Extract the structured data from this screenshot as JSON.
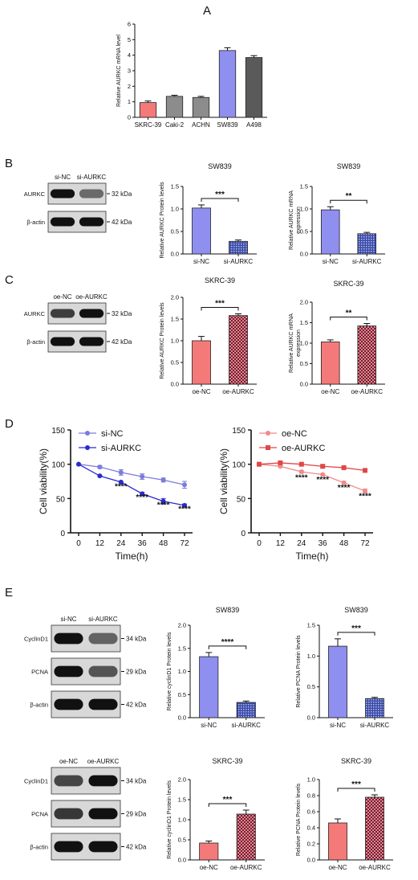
{
  "panel_A": {
    "letter": "A",
    "chart_data": {
      "type": "bar",
      "categories": [
        "SKRC-39",
        "Caki-2",
        "ACHN",
        "SW839",
        "A498"
      ],
      "values": [
        0.95,
        1.35,
        1.28,
        4.3,
        3.85
      ],
      "errors": [
        0.1,
        0.07,
        0.07,
        0.18,
        0.12
      ],
      "colors": [
        "#f47a7a",
        "#8c8c8c",
        "#8c8c8c",
        "#8f8fef",
        "#5a5a5a"
      ],
      "ylabel": "Relative AURKC mRNA level",
      "ylim": [
        0,
        6
      ],
      "yticks": [
        "0",
        "1",
        "2",
        "3",
        "4",
        "5",
        "6"
      ]
    }
  },
  "panel_B": {
    "letter": "B",
    "blot": {
      "lanes": [
        "si-NC",
        "si-AURKC"
      ],
      "rows": [
        {
          "label": "AURKC",
          "kda": "32 kDa",
          "bands": [
            1.0,
            0.4
          ]
        },
        {
          "label": "β-actin",
          "kda": "42 kDa",
          "bands": [
            1.0,
            1.0
          ]
        }
      ]
    },
    "charts": [
      {
        "type": "bar",
        "title": "SW839",
        "ylabel": "Relative AURKC Protein levels",
        "categories": [
          "si-NC",
          "si-AURKC"
        ],
        "values": [
          1.02,
          0.28
        ],
        "errors": [
          0.07,
          0.03
        ],
        "ylim": [
          0,
          1.5
        ],
        "yticks": [
          "0.0",
          "0.5",
          "1.0",
          "1.5"
        ],
        "sig": "***",
        "pattern": "dots"
      },
      {
        "type": "bar",
        "title": "SW839",
        "ylabel": "Relative AURKC mRNA expression",
        "categories": [
          "si-NC",
          "si-AURKC"
        ],
        "values": [
          0.98,
          0.45
        ],
        "errors": [
          0.07,
          0.03
        ],
        "ylim": [
          0,
          1.5
        ],
        "yticks": [
          "0.0",
          "0.5",
          "1.0",
          "1.5"
        ],
        "sig": "**",
        "pattern": "dots"
      }
    ]
  },
  "panel_C": {
    "letter": "C",
    "blot": {
      "lanes": [
        "oe-NC",
        "oe-AURKC"
      ],
      "rows": [
        {
          "label": "AURKC",
          "kda": "32 kDa",
          "bands": [
            0.7,
            1.0
          ]
        },
        {
          "label": "β-actin",
          "kda": "42 kDa",
          "bands": [
            1.0,
            1.0
          ]
        }
      ]
    },
    "charts": [
      {
        "type": "bar",
        "title": "SKRC-39",
        "ylabel": "Relative AURKC Protein levels",
        "categories": [
          "oe-NC",
          "oe-AURKC"
        ],
        "values": [
          1.0,
          1.58
        ],
        "errors": [
          0.1,
          0.04
        ],
        "ylim": [
          0,
          2.0
        ],
        "yticks": [
          "0.0",
          "0.5",
          "1.0",
          "1.5",
          "2.0"
        ],
        "sig": "***",
        "pattern": "checks"
      },
      {
        "type": "bar",
        "title": "SKRC-39",
        "ylabel": "Relative AURKC mRNA expression",
        "categories": [
          "oe-NC",
          "oe-AURKC"
        ],
        "values": [
          1.03,
          1.42
        ],
        "errors": [
          0.05,
          0.06
        ],
        "ylim": [
          0,
          2.0
        ],
        "yticks": [
          "0.0",
          "0.5",
          "1.0",
          "1.5",
          "2.0"
        ],
        "sig": "**",
        "pattern": "checks"
      }
    ]
  },
  "panel_D": {
    "letter": "D",
    "charts": [
      {
        "type": "line",
        "x": [
          0,
          12,
          24,
          36,
          48,
          72
        ],
        "xlabel": "Time(h)",
        "ylabel": "Cell viability(%)",
        "ylim": [
          0,
          150
        ],
        "yticks": [
          "0",
          "50",
          "100",
          "150"
        ],
        "xticks": [
          "0",
          "12",
          "24",
          "36",
          "48",
          "72"
        ],
        "series": [
          {
            "name": "si-NC",
            "values": [
              100,
              96,
              88,
              82,
              77,
              70
            ],
            "errors": [
              0,
              2,
              4,
              4,
              3,
              5
            ],
            "color": "#7b7bdb",
            "marker": "circle"
          },
          {
            "name": "si-AURKC",
            "values": [
              100,
              83,
              74,
              57,
              46,
              40
            ],
            "errors": [
              0,
              1,
              1,
              2,
              4,
              2
            ],
            "color": "#2b2bcf",
            "marker": "circle"
          }
        ],
        "stars": [
          {
            "x": 24,
            "y": 64,
            "label": "****"
          },
          {
            "x": 36,
            "y": 48,
            "label": "****"
          },
          {
            "x": 48,
            "y": 37,
            "label": "****"
          },
          {
            "x": 72,
            "y": 31,
            "label": "****"
          }
        ]
      },
      {
        "type": "line",
        "x": [
          0,
          12,
          24,
          36,
          48,
          72
        ],
        "xlabel": "Time(h)",
        "ylabel": "Cell viability(%)",
        "ylim": [
          0,
          150
        ],
        "yticks": [
          "0",
          "50",
          "100",
          "150"
        ],
        "xticks": [
          "0",
          "12",
          "24",
          "36",
          "48",
          "72"
        ],
        "series": [
          {
            "name": "oe-NC",
            "values": [
              100,
              97,
              89,
              85,
              73,
              61
            ],
            "errors": [
              0,
              1,
              2,
              1,
              2,
              3
            ],
            "color": "#f28a8a",
            "marker": "circle"
          },
          {
            "name": "oe-AURKC",
            "values": [
              100,
              102,
              100,
              97,
              95,
              91
            ],
            "errors": [
              0,
              1,
              1,
              2,
              1,
              1
            ],
            "color": "#e04848",
            "marker": "square"
          }
        ],
        "stars": [
          {
            "x": 24,
            "y": 77,
            "label": "****"
          },
          {
            "x": 36,
            "y": 74,
            "label": "****"
          },
          {
            "x": 48,
            "y": 62,
            "label": "****"
          },
          {
            "x": 72,
            "y": 50,
            "label": "****"
          }
        ]
      }
    ]
  },
  "panel_E": {
    "letter": "E",
    "blot_top": {
      "lanes": [
        "si-NC",
        "si-AURKC"
      ],
      "rows": [
        {
          "label": "CyclinD1",
          "kda": "34 kDa",
          "bands": [
            1.0,
            0.45
          ]
        },
        {
          "label": "PCNA",
          "kda": "29 kDa",
          "bands": [
            1.0,
            0.55
          ]
        },
        {
          "label": "β-actin",
          "kda": "42 kDa",
          "bands": [
            1.0,
            1.0
          ]
        }
      ]
    },
    "blot_bottom": {
      "lanes": [
        "oe-NC",
        "oe-AURKC"
      ],
      "rows": [
        {
          "label": "CyclinD1",
          "kda": "34 kDa",
          "bands": [
            0.65,
            1.0
          ]
        },
        {
          "label": "PCNA",
          "kda": "29 kDa",
          "bands": [
            0.75,
            1.0
          ]
        },
        {
          "label": "β-actin",
          "kda": "42 kDa",
          "bands": [
            1.0,
            1.0
          ]
        }
      ]
    },
    "charts": [
      {
        "type": "bar",
        "title": "SW839",
        "ylabel": "Relative cyclinD1 Protein levels",
        "categories": [
          "si-NC",
          "si-AURKC"
        ],
        "values": [
          1.32,
          0.33
        ],
        "errors": [
          0.09,
          0.03
        ],
        "ylim": [
          0,
          2.0
        ],
        "yticks": [
          "0.0",
          "0.5",
          "1.0",
          "1.5",
          "2.0"
        ],
        "sig": "****",
        "pattern": "dots"
      },
      {
        "type": "bar",
        "title": "SW839",
        "ylabel": "Relative PCNA Protein levels",
        "categories": [
          "si-NC",
          "si-AURKC"
        ],
        "values": [
          1.16,
          0.31
        ],
        "errors": [
          0.12,
          0.02
        ],
        "ylim": [
          0,
          1.5
        ],
        "yticks": [
          "0.0",
          "0.5",
          "1.0",
          "1.5"
        ],
        "sig": "***",
        "pattern": "dots"
      },
      {
        "type": "bar",
        "title": "SKRC-39",
        "ylabel": "Relative cyclinD1 Protein levels",
        "categories": [
          "oe-NC",
          "oe-AURKC"
        ],
        "values": [
          0.42,
          1.14
        ],
        "errors": [
          0.05,
          0.1
        ],
        "ylim": [
          0,
          2.0
        ],
        "yticks": [
          "0.0",
          "0.5",
          "1.0",
          "1.5",
          "2.0"
        ],
        "sig": "***",
        "pattern": "checks"
      },
      {
        "type": "bar",
        "title": "SKRC-39",
        "ylabel": "Relative PCNA Protein levels",
        "categories": [
          "oe-NC",
          "oe-AURKC"
        ],
        "values": [
          0.46,
          0.78
        ],
        "errors": [
          0.05,
          0.03
        ],
        "ylim": [
          0,
          1.0
        ],
        "yticks": [
          "0.0",
          "0.2",
          "0.4",
          "0.6",
          "0.8",
          "1.0"
        ],
        "sig": "***",
        "pattern": "checks"
      }
    ]
  }
}
